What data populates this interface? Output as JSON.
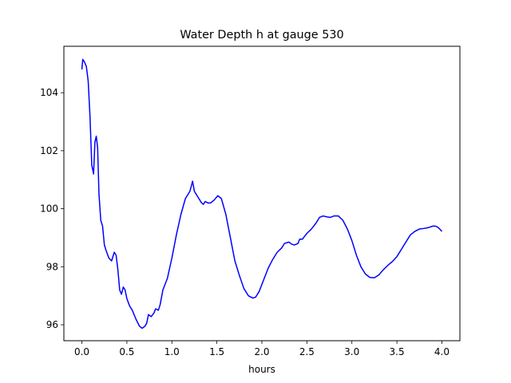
{
  "chart_data": {
    "type": "line",
    "title": "Water Depth h at gauge 530",
    "xlabel": "hours",
    "ylabel": "",
    "xlim": [
      -0.2,
      4.2
    ],
    "ylim": [
      95.45,
      105.6
    ],
    "xticks": [
      0.0,
      0.5,
      1.0,
      1.5,
      2.0,
      2.5,
      3.0,
      3.5,
      4.0
    ],
    "xtick_labels": [
      "0.0",
      "0.5",
      "1.0",
      "1.5",
      "2.0",
      "2.5",
      "3.0",
      "3.5",
      "4.0"
    ],
    "yticks": [
      96,
      98,
      100,
      102,
      104
    ],
    "ytick_labels": [
      "96",
      "98",
      "100",
      "102",
      "104"
    ],
    "grid": false,
    "series": [
      {
        "color": "#0000ff",
        "points": [
          [
            0.0,
            104.8
          ],
          [
            0.01,
            105.15
          ],
          [
            0.03,
            105.05
          ],
          [
            0.05,
            104.9
          ],
          [
            0.07,
            104.4
          ],
          [
            0.09,
            103.2
          ],
          [
            0.11,
            101.5
          ],
          [
            0.13,
            101.2
          ],
          [
            0.145,
            102.3
          ],
          [
            0.16,
            102.5
          ],
          [
            0.175,
            102.1
          ],
          [
            0.19,
            100.5
          ],
          [
            0.21,
            99.6
          ],
          [
            0.23,
            99.4
          ],
          [
            0.25,
            98.75
          ],
          [
            0.27,
            98.55
          ],
          [
            0.3,
            98.3
          ],
          [
            0.33,
            98.2
          ],
          [
            0.36,
            98.5
          ],
          [
            0.38,
            98.4
          ],
          [
            0.4,
            97.9
          ],
          [
            0.42,
            97.2
          ],
          [
            0.44,
            97.05
          ],
          [
            0.46,
            97.3
          ],
          [
            0.48,
            97.2
          ],
          [
            0.5,
            96.9
          ],
          [
            0.53,
            96.65
          ],
          [
            0.56,
            96.5
          ],
          [
            0.6,
            96.2
          ],
          [
            0.64,
            95.95
          ],
          [
            0.67,
            95.88
          ],
          [
            0.7,
            95.95
          ],
          [
            0.72,
            96.05
          ],
          [
            0.74,
            96.35
          ],
          [
            0.77,
            96.28
          ],
          [
            0.8,
            96.4
          ],
          [
            0.82,
            96.55
          ],
          [
            0.85,
            96.5
          ],
          [
            0.87,
            96.7
          ],
          [
            0.9,
            97.2
          ],
          [
            0.95,
            97.6
          ],
          [
            1.0,
            98.3
          ],
          [
            1.05,
            99.1
          ],
          [
            1.1,
            99.8
          ],
          [
            1.15,
            100.35
          ],
          [
            1.2,
            100.6
          ],
          [
            1.23,
            100.95
          ],
          [
            1.25,
            100.6
          ],
          [
            1.3,
            100.35
          ],
          [
            1.33,
            100.2
          ],
          [
            1.35,
            100.15
          ],
          [
            1.37,
            100.25
          ],
          [
            1.4,
            100.2
          ],
          [
            1.43,
            100.2
          ],
          [
            1.47,
            100.3
          ],
          [
            1.51,
            100.45
          ],
          [
            1.55,
            100.35
          ],
          [
            1.6,
            99.8
          ],
          [
            1.65,
            99.0
          ],
          [
            1.7,
            98.2
          ],
          [
            1.75,
            97.7
          ],
          [
            1.8,
            97.25
          ],
          [
            1.85,
            97.0
          ],
          [
            1.9,
            96.92
          ],
          [
            1.93,
            96.95
          ],
          [
            1.97,
            97.15
          ],
          [
            2.02,
            97.55
          ],
          [
            2.07,
            97.95
          ],
          [
            2.12,
            98.25
          ],
          [
            2.17,
            98.5
          ],
          [
            2.22,
            98.65
          ],
          [
            2.25,
            98.8
          ],
          [
            2.3,
            98.85
          ],
          [
            2.33,
            98.78
          ],
          [
            2.36,
            98.75
          ],
          [
            2.4,
            98.8
          ],
          [
            2.42,
            98.95
          ],
          [
            2.45,
            98.95
          ],
          [
            2.5,
            99.15
          ],
          [
            2.55,
            99.3
          ],
          [
            2.6,
            99.5
          ],
          [
            2.64,
            99.7
          ],
          [
            2.68,
            99.75
          ],
          [
            2.72,
            99.72
          ],
          [
            2.76,
            99.7
          ],
          [
            2.8,
            99.75
          ],
          [
            2.85,
            99.75
          ],
          [
            2.9,
            99.6
          ],
          [
            2.95,
            99.3
          ],
          [
            3.0,
            98.9
          ],
          [
            3.05,
            98.4
          ],
          [
            3.1,
            98.0
          ],
          [
            3.15,
            97.75
          ],
          [
            3.2,
            97.63
          ],
          [
            3.25,
            97.62
          ],
          [
            3.3,
            97.72
          ],
          [
            3.35,
            97.9
          ],
          [
            3.4,
            98.05
          ],
          [
            3.45,
            98.18
          ],
          [
            3.5,
            98.35
          ],
          [
            3.55,
            98.6
          ],
          [
            3.6,
            98.85
          ],
          [
            3.65,
            99.1
          ],
          [
            3.7,
            99.22
          ],
          [
            3.75,
            99.3
          ],
          [
            3.8,
            99.32
          ],
          [
            3.85,
            99.35
          ],
          [
            3.9,
            99.4
          ],
          [
            3.93,
            99.4
          ],
          [
            3.96,
            99.35
          ],
          [
            4.0,
            99.22
          ]
        ]
      }
    ]
  }
}
